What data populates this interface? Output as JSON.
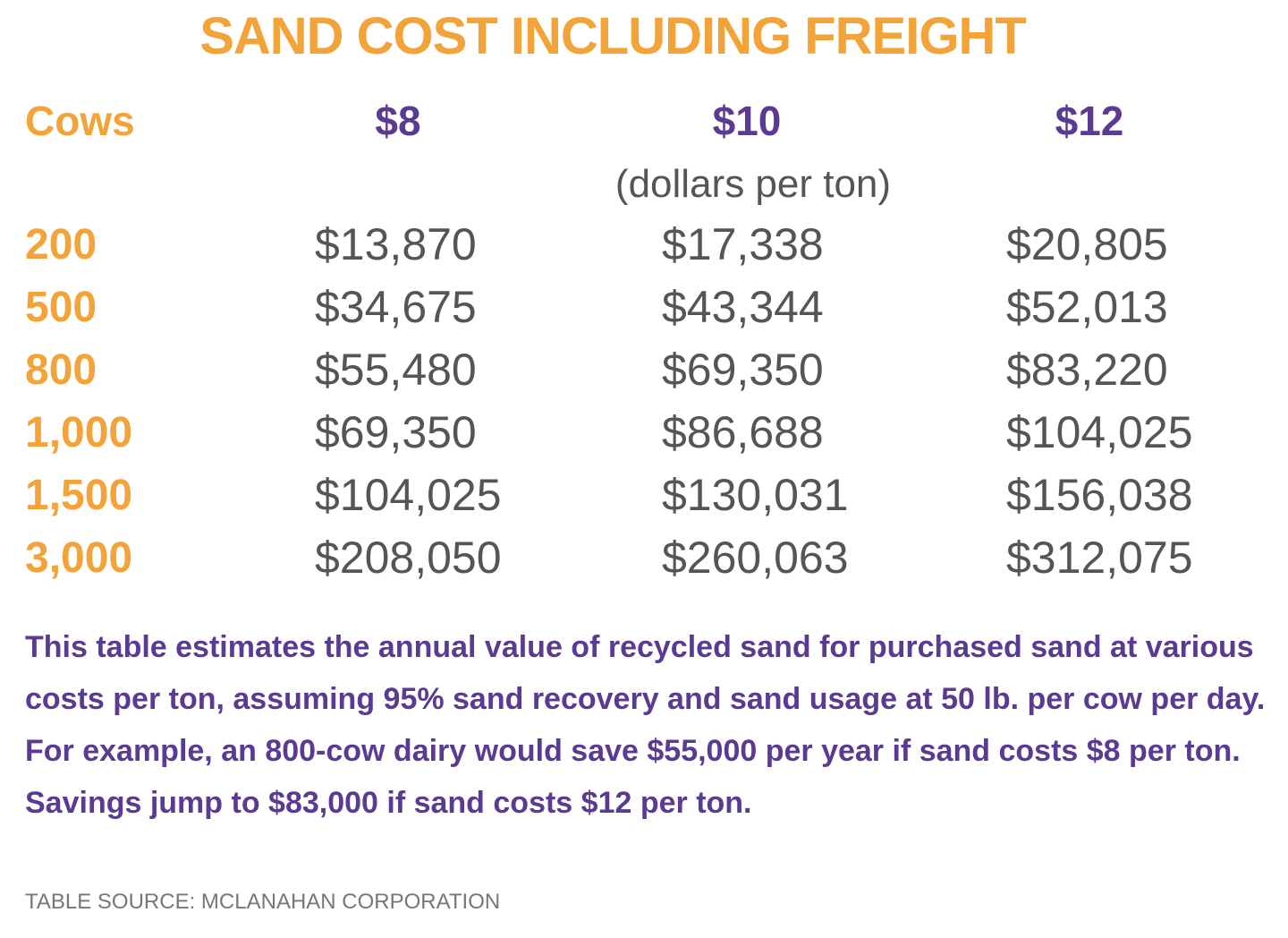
{
  "title": "SAND COST INCLUDING FREIGHT",
  "table": {
    "header": [
      "Cows",
      "$8",
      "$10",
      "$12"
    ],
    "subheader": "(dollars per ton)",
    "rows": [
      [
        "200",
        "$13,870",
        "$17,338",
        "$20,805"
      ],
      [
        "500",
        "$34,675",
        "$43,344",
        "$52,013"
      ],
      [
        "800",
        "$55,480",
        "$69,350",
        "$83,220"
      ],
      [
        "1,000",
        "$69,350",
        "$86,688",
        "$104,025"
      ],
      [
        "1,500",
        "$104,025",
        "$130,031",
        "$156,038"
      ],
      [
        "3,000",
        "$208,050",
        "$260,063",
        "$312,075"
      ]
    ]
  },
  "note": "This table estimates the annual value of recycled sand for purchased sand at various costs per ton, assuming 95% sand recovery and sand usage at 50 lb. per cow per day. For example, an 800-cow dairy would save $55,000 per year if sand costs $8 per ton. Savings jump to $83,000 if sand costs $12 per ton.",
  "source": "TABLE SOURCE: MCLANAHAN CORPORATION"
}
